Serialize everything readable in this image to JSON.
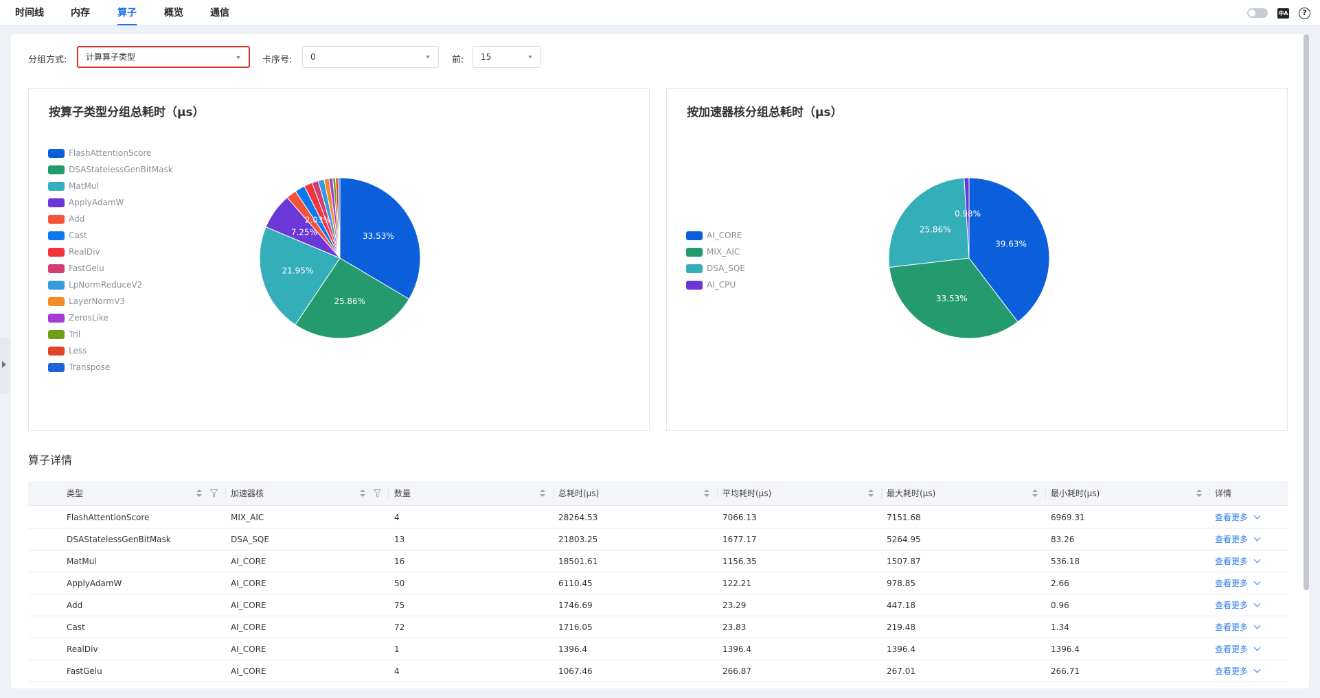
{
  "tabs": [
    {
      "label": "时间线",
      "active": false
    },
    {
      "label": "内存",
      "active": false
    },
    {
      "label": "算子",
      "active": true
    },
    {
      "label": "概览",
      "active": false
    },
    {
      "label": "通信",
      "active": false
    }
  ],
  "header_icons": [
    "theme-toggle",
    "language-icon",
    "help-icon"
  ],
  "filters": {
    "group_label": "分组方式:",
    "group_value": "计算算子类型",
    "card_label": "卡序号:",
    "card_value": "0",
    "top_label": "前:",
    "top_value": "15"
  },
  "charts_text": {
    "op_type_title": "按算子类型分组总耗时（μs）",
    "core_title": "按加速器核分组总耗时（μs）"
  },
  "chart_data": [
    {
      "type": "pie",
      "title": "按算子类型分组总耗时（μs）",
      "legend_placement": "left",
      "slices": [
        {
          "label": "FlashAttentionScore",
          "value": 33.53,
          "color": "#0c5fdb",
          "display": "33.53%"
        },
        {
          "label": "DSAStatelessGenBitMask",
          "value": 25.86,
          "color": "#249b6f",
          "display": "25.86%"
        },
        {
          "label": "MatMul",
          "value": 21.95,
          "color": "#34aeb9",
          "display": "21.95%"
        },
        {
          "label": "ApplyAdamW",
          "value": 7.25,
          "color": "#6b37d6",
          "display": "7.25%"
        },
        {
          "label": "Add",
          "value": 2.07,
          "color": "#f5523a",
          "display": ""
        },
        {
          "label": "Cast",
          "value": 2.03,
          "color": "#0b78f0",
          "display": "2.03%"
        },
        {
          "label": "RealDiv",
          "value": 1.66,
          "color": "#f2343c",
          "display": ""
        },
        {
          "label": "FastGelu",
          "value": 1.27,
          "color": "#d43f73",
          "display": ""
        },
        {
          "label": "LpNormReduceV2",
          "value": 1.2,
          "color": "#3898e0",
          "display": ""
        },
        {
          "label": "LayerNormV3",
          "value": 1.0,
          "color": "#f08b27",
          "display": ""
        },
        {
          "label": "ZerosLike",
          "value": 0.75,
          "color": "#a63cd4",
          "display": ""
        },
        {
          "label": "Tril",
          "value": 0.55,
          "color": "#6e9f18",
          "display": ""
        },
        {
          "label": "Less",
          "value": 0.5,
          "color": "#e04428",
          "display": ""
        },
        {
          "label": "Transpose",
          "value": 0.38,
          "color": "#1d63d6",
          "display": ""
        }
      ]
    },
    {
      "type": "pie",
      "title": "按加速器核分组总耗时（μs）",
      "legend_placement": "left",
      "slices": [
        {
          "label": "AI_CORE",
          "value": 39.63,
          "color": "#0c5fdb",
          "display": "39.63%"
        },
        {
          "label": "MIX_AIC",
          "value": 33.53,
          "color": "#249b6f",
          "display": "33.53%"
        },
        {
          "label": "DSA_SQE",
          "value": 25.86,
          "color": "#34aeb9",
          "display": "25.86%"
        },
        {
          "label": "AI_CPU",
          "value": 0.98,
          "color": "#6b37d6",
          "display": "0.98%"
        }
      ]
    }
  ],
  "details": {
    "title": "算子详情",
    "columns": [
      "类型",
      "加速器核",
      "数量",
      "总耗时(μs)",
      "平均耗时(μs)",
      "最大耗时(μs)",
      "最小耗时(μs)",
      "详情"
    ],
    "more_label": "查看更多",
    "rows": [
      [
        "FlashAttentionScore",
        "MIX_AIC",
        "4",
        "28264.53",
        "7066.13",
        "7151.68",
        "6969.31"
      ],
      [
        "DSAStatelessGenBitMask",
        "DSA_SQE",
        "13",
        "21803.25",
        "1677.17",
        "5264.95",
        "83.26"
      ],
      [
        "MatMul",
        "AI_CORE",
        "16",
        "18501.61",
        "1156.35",
        "1507.87",
        "536.18"
      ],
      [
        "ApplyAdamW",
        "AI_CORE",
        "50",
        "6110.45",
        "122.21",
        "978.85",
        "2.66"
      ],
      [
        "Add",
        "AI_CORE",
        "75",
        "1746.69",
        "23.29",
        "447.18",
        "0.96"
      ],
      [
        "Cast",
        "AI_CORE",
        "72",
        "1716.05",
        "23.83",
        "219.48",
        "1.34"
      ],
      [
        "RealDiv",
        "AI_CORE",
        "1",
        "1396.4",
        "1396.4",
        "1396.4",
        "1396.4"
      ],
      [
        "FastGelu",
        "AI_CORE",
        "4",
        "1067.46",
        "266.87",
        "267.01",
        "266.71"
      ]
    ]
  }
}
